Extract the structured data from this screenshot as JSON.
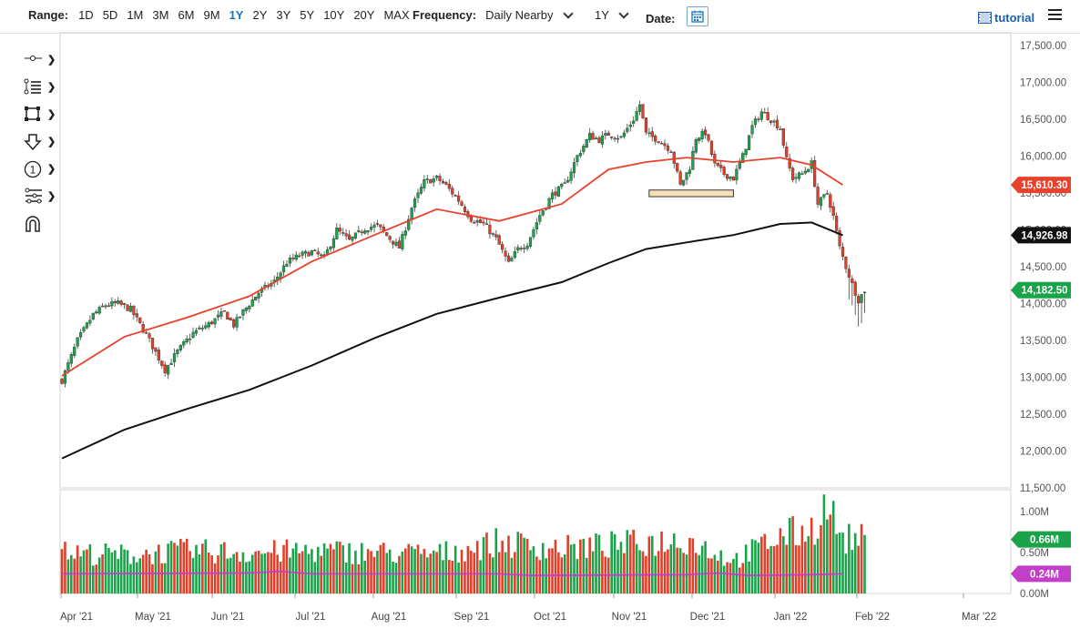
{
  "toolbar": {
    "range_label": "Range:",
    "ranges": [
      "1D",
      "5D",
      "1M",
      "3M",
      "6M",
      "9M",
      "1Y",
      "2Y",
      "3Y",
      "5Y",
      "10Y",
      "20Y",
      "MAX"
    ],
    "active_range": "1Y",
    "frequency_label": "Frequency:",
    "frequency_value": "Daily Nearby",
    "period_value": "1Y",
    "date_label": "Date:",
    "tutorial_label": "tutorial"
  },
  "drawing_tools": [
    "crosshair-tool",
    "line-tool",
    "rectangle-tool",
    "arrow-tool",
    "count-tool",
    "fibonacci-tool",
    "magnet-tool"
  ],
  "colors": {
    "up": "#1aa34a",
    "down": "#e0402a",
    "ma50": "#e8412c",
    "ma200": "#111111",
    "vol_avg": "#c23fc9",
    "accent": "#1a73c9"
  },
  "chart_data": {
    "type": "candlestick",
    "x_labels": [
      "Apr '21",
      "May '21",
      "Jun '21",
      "Jul '21",
      "Aug '21",
      "Sep '21",
      "Oct '21",
      "Nov '21",
      "Dec '21",
      "Jan '22",
      "Feb '22",
      "Mar '22"
    ],
    "y_ticks": [
      "17,500.00",
      "17,000.00",
      "16,500.00",
      "16,000.00",
      "15,500.00",
      "15,000.00",
      "14,500.00",
      "14,000.00",
      "13,500.00",
      "13,000.00",
      "12,500.00",
      "12,000.00",
      "11,500.00"
    ],
    "ylim": [
      11500,
      17500
    ],
    "ohlc_path": [
      [
        0,
        12960
      ],
      [
        5,
        13500
      ],
      [
        10,
        13850
      ],
      [
        14,
        13980
      ],
      [
        18,
        14000
      ],
      [
        22,
        13920
      ],
      [
        27,
        13580
      ],
      [
        33,
        13100
      ],
      [
        37,
        13350
      ],
      [
        42,
        13600
      ],
      [
        47,
        13720
      ],
      [
        52,
        13880
      ],
      [
        55,
        13710
      ],
      [
        58,
        13890
      ],
      [
        63,
        14150
      ],
      [
        68,
        14300
      ],
      [
        72,
        14560
      ],
      [
        76,
        14650
      ],
      [
        80,
        14700
      ],
      [
        84,
        14620
      ],
      [
        88,
        15000
      ],
      [
        92,
        14850
      ],
      [
        97,
        15020
      ],
      [
        101,
        15060
      ],
      [
        104,
        14920
      ],
      [
        108,
        14760
      ],
      [
        112,
        15300
      ],
      [
        116,
        15650
      ],
      [
        120,
        15700
      ],
      [
        123,
        15600
      ],
      [
        127,
        15400
      ],
      [
        131,
        15150
      ],
      [
        135,
        15080
      ],
      [
        139,
        14880
      ],
      [
        143,
        14540
      ],
      [
        146,
        14740
      ],
      [
        149,
        14820
      ],
      [
        153,
        15200
      ],
      [
        157,
        15480
      ],
      [
        161,
        15610
      ],
      [
        165,
        16000
      ],
      [
        169,
        16280
      ],
      [
        172,
        16220
      ],
      [
        175,
        16300
      ],
      [
        179,
        16250
      ],
      [
        183,
        16500
      ],
      [
        185,
        16700
      ],
      [
        187,
        16300
      ],
      [
        191,
        16220
      ],
      [
        195,
        16080
      ],
      [
        198,
        15600
      ],
      [
        201,
        15850
      ],
      [
        203,
        16250
      ],
      [
        206,
        16320
      ],
      [
        209,
        15880
      ],
      [
        212,
        15760
      ],
      [
        215,
        15700
      ],
      [
        218,
        16000
      ],
      [
        221,
        16400
      ],
      [
        224,
        16600
      ],
      [
        227,
        16500
      ],
      [
        230,
        16380
      ],
      [
        232,
        15950
      ],
      [
        234,
        15700
      ],
      [
        237,
        15760
      ],
      [
        240,
        15900
      ],
      [
        242,
        15350
      ],
      [
        245,
        15500
      ],
      [
        247,
        15180
      ],
      [
        249,
        14760
      ],
      [
        251,
        14500
      ],
      [
        253,
        14260
      ],
      [
        255,
        14050
      ],
      [
        257,
        14182
      ]
    ],
    "ma50": [
      [
        0,
        13020
      ],
      [
        20,
        13550
      ],
      [
        40,
        13810
      ],
      [
        60,
        14100
      ],
      [
        80,
        14570
      ],
      [
        100,
        14930
      ],
      [
        120,
        15280
      ],
      [
        140,
        15120
      ],
      [
        160,
        15350
      ],
      [
        175,
        15820
      ],
      [
        187,
        15920
      ],
      [
        200,
        15980
      ],
      [
        215,
        15920
      ],
      [
        230,
        15980
      ],
      [
        240,
        15880
      ],
      [
        250,
        15610
      ]
    ],
    "ma200": [
      [
        0,
        11900
      ],
      [
        20,
        12290
      ],
      [
        40,
        12570
      ],
      [
        60,
        12830
      ],
      [
        80,
        13160
      ],
      [
        100,
        13530
      ],
      [
        120,
        13860
      ],
      [
        140,
        14080
      ],
      [
        160,
        14290
      ],
      [
        175,
        14550
      ],
      [
        187,
        14740
      ],
      [
        200,
        14830
      ],
      [
        215,
        14930
      ],
      [
        230,
        15080
      ],
      [
        240,
        15100
      ],
      [
        250,
        14926.98
      ]
    ],
    "support_zone": {
      "x_from": 188,
      "x_to": 215,
      "y_from": 15450,
      "y_to": 15540
    },
    "price_labels": [
      {
        "text": "15,610.30",
        "value": 15610.3,
        "color": "#e8412c"
      },
      {
        "text": "14,926.98",
        "value": 14926.98,
        "color": "#111111"
      },
      {
        "text": "14,182.50",
        "value": 14182.5,
        "color": "#1aa34a"
      }
    ],
    "volume": {
      "y_ticks": [
        "1.00M",
        "0.50M",
        "0.00M"
      ],
      "ylim": [
        0,
        1.2
      ],
      "labels": [
        {
          "text": "0.66M",
          "value": 0.66,
          "color": "#1aa34a"
        },
        {
          "text": "0.24M",
          "value": 0.24,
          "color": "#c23fc9"
        }
      ],
      "profile": [
        [
          0,
          0.5
        ],
        [
          20,
          0.47
        ],
        [
          40,
          0.52
        ],
        [
          60,
          0.5
        ],
        [
          80,
          0.52
        ],
        [
          100,
          0.5
        ],
        [
          120,
          0.48
        ],
        [
          140,
          0.62
        ],
        [
          160,
          0.55
        ],
        [
          180,
          0.6
        ],
        [
          200,
          0.66
        ],
        [
          215,
          0.4
        ],
        [
          230,
          0.7
        ],
        [
          240,
          0.78
        ],
        [
          245,
          1.08
        ],
        [
          250,
          0.66
        ]
      ],
      "avg": [
        [
          0,
          0.24
        ],
        [
          60,
          0.25
        ],
        [
          70,
          0.27
        ],
        [
          80,
          0.24
        ],
        [
          140,
          0.24
        ],
        [
          150,
          0.22
        ],
        [
          200,
          0.23
        ],
        [
          210,
          0.25
        ],
        [
          220,
          0.22
        ],
        [
          240,
          0.23
        ],
        [
          250,
          0.24
        ]
      ]
    },
    "n_bars": 252
  }
}
